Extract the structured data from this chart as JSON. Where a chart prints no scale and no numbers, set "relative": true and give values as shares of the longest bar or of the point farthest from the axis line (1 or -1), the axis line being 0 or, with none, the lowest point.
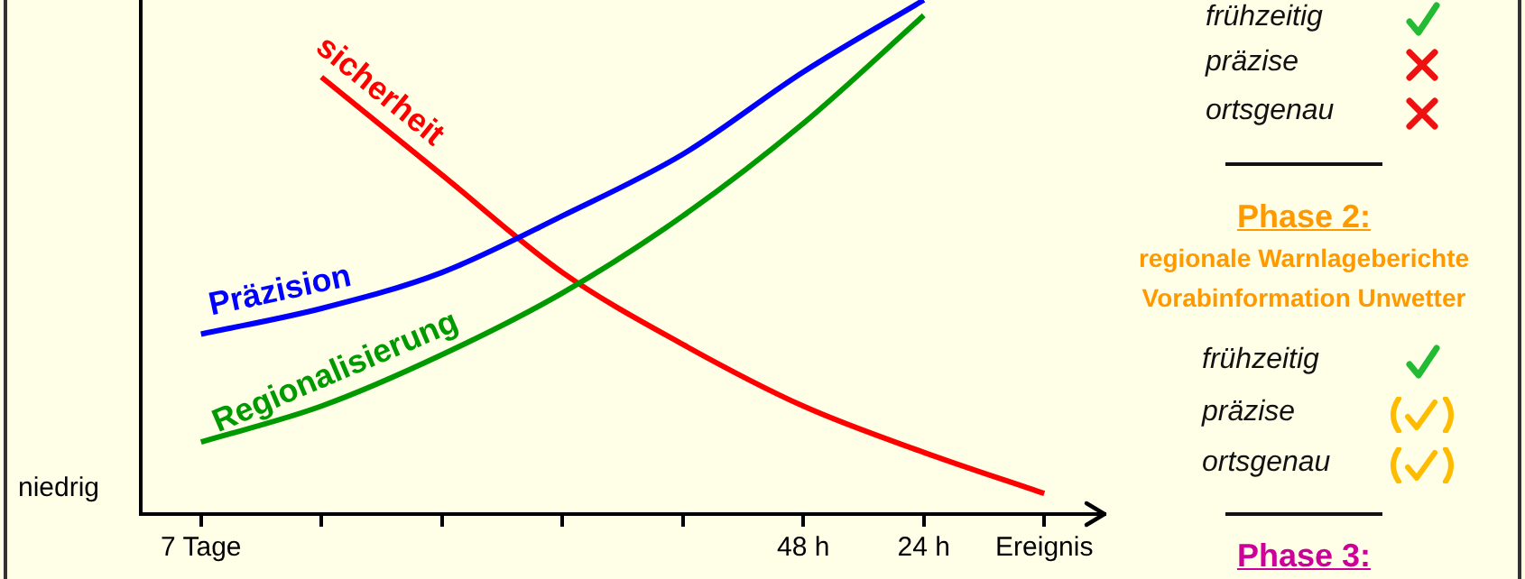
{
  "chart_data": [
    {
      "type": "line",
      "relative": true,
      "categories": [
        "7 Tage",
        null,
        null,
        null,
        null,
        "48 h",
        "24 h",
        "Ereignis"
      ],
      "series": [
        {
          "name": "Präzision",
          "color": "#0000ff",
          "values": [
            0.35,
            0.4,
            0.47,
            0.58,
            0.7,
            0.86,
            1.0,
            null
          ]
        },
        {
          "name": "Regionalisierung",
          "color": "#009900",
          "values": [
            0.14,
            0.21,
            0.31,
            0.43,
            0.58,
            0.76,
            0.97,
            null
          ]
        },
        {
          "name": "sicherheit",
          "color": "#ff0000",
          "values": [
            null,
            0.85,
            0.66,
            0.47,
            0.33,
            0.21,
            0.12,
            0.04
          ]
        }
      ],
      "grid": false,
      "legend": false,
      "marker": "none",
      "line_style": "solid",
      "annotations": [
        "niedrig"
      ]
    },
    {
      "type": "other",
      "annotations": [
        "frühzeitig",
        "präzise",
        "ortsgenau",
        "Phase 2:",
        "regionale Warnlageberichte",
        "Vorabinformation Unwetter",
        "frühzeitig",
        "präzise",
        "ortsgenau",
        "Phase 3:"
      ]
    }
  ]
}
